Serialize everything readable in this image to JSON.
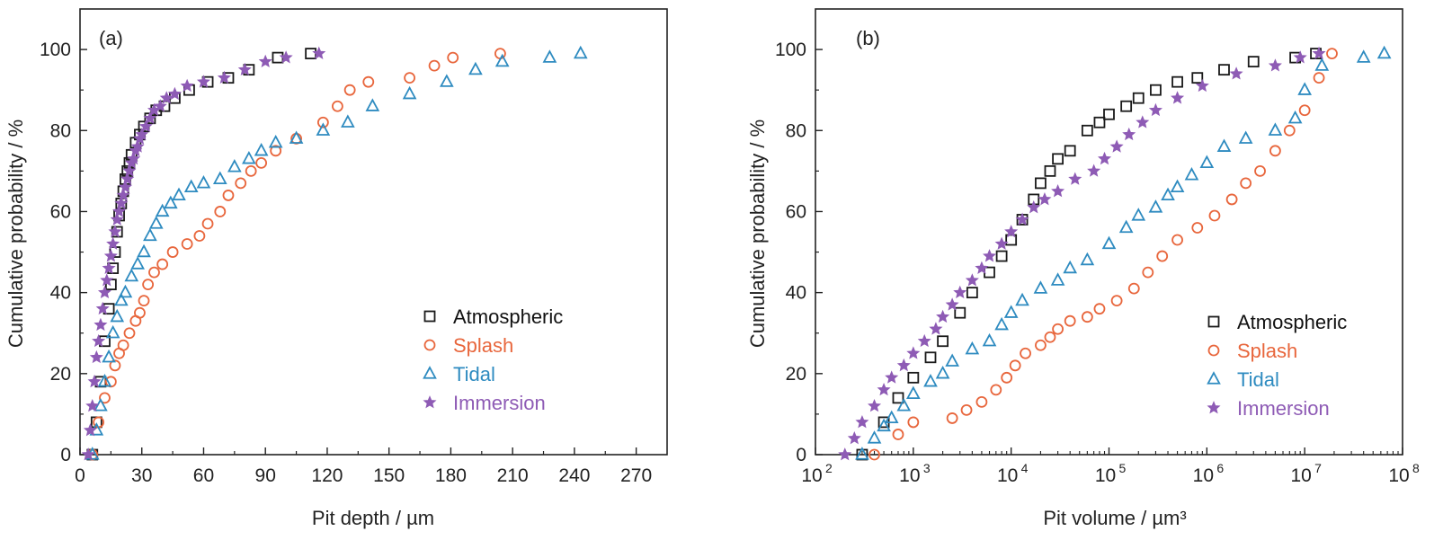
{
  "chart_data": [
    {
      "type": "scatter",
      "panel_label": "(a)",
      "xlabel": "Pit depth / µm",
      "ylabel": "Cumulative probability / %",
      "xscale": "linear",
      "xlim": [
        0,
        285
      ],
      "ylim": [
        0,
        110
      ],
      "xticks": [
        0,
        30,
        60,
        90,
        120,
        150,
        180,
        210,
        240,
        270
      ],
      "yticks": [
        0,
        20,
        40,
        60,
        80,
        100
      ],
      "legend_position": "lower-right",
      "series": [
        {
          "name": "Atmospheric",
          "marker": "square",
          "color": "#1a1a1a",
          "x": [
            6,
            8,
            10,
            12,
            14,
            15,
            16,
            17,
            18,
            19,
            20,
            21,
            22,
            23,
            24,
            25,
            27,
            29,
            31,
            34,
            37,
            41,
            46,
            53,
            62,
            72,
            82,
            96,
            112
          ],
          "y": [
            0,
            8,
            18,
            28,
            36,
            42,
            46,
            50,
            55,
            59,
            62,
            65,
            68,
            70,
            72,
            74,
            77,
            79,
            81,
            83,
            85,
            86,
            88,
            90,
            92,
            93,
            95,
            98,
            99
          ]
        },
        {
          "name": "Splash",
          "marker": "circle",
          "color": "#e8663c",
          "x": [
            6,
            9,
            12,
            15,
            17,
            19,
            21,
            24,
            27,
            29,
            31,
            33,
            36,
            40,
            45,
            52,
            58,
            62,
            68,
            72,
            78,
            83,
            88,
            95,
            105,
            118,
            125,
            131,
            140,
            160,
            172,
            181,
            204
          ],
          "y": [
            0,
            8,
            14,
            18,
            22,
            25,
            27,
            30,
            33,
            35,
            38,
            42,
            45,
            47,
            50,
            52,
            54,
            57,
            60,
            64,
            67,
            70,
            72,
            75,
            78,
            82,
            86,
            90,
            92,
            93,
            96,
            98,
            99
          ]
        },
        {
          "name": "Tidal",
          "marker": "triangle",
          "color": "#2e8bc0",
          "x": [
            6,
            8,
            10,
            12,
            14,
            16,
            18,
            20,
            22,
            25,
            28,
            31,
            34,
            37,
            40,
            44,
            48,
            54,
            60,
            68,
            75,
            82,
            88,
            95,
            105,
            118,
            130,
            142,
            160,
            178,
            192,
            205,
            228,
            243
          ],
          "y": [
            0,
            6,
            12,
            18,
            24,
            30,
            34,
            38,
            40,
            44,
            47,
            50,
            54,
            57,
            60,
            62,
            64,
            66,
            67,
            68,
            71,
            73,
            75,
            77,
            78,
            80,
            82,
            86,
            89,
            92,
            95,
            97,
            98,
            99
          ]
        },
        {
          "name": "Immersion",
          "marker": "star",
          "color": "#8e5bb5",
          "x": [
            4,
            5,
            6,
            7,
            8,
            9,
            10,
            11,
            12,
            13,
            14,
            15,
            16,
            17,
            18,
            19,
            20,
            21,
            22,
            23,
            24,
            25,
            26,
            27,
            28,
            29,
            30,
            32,
            34,
            36,
            39,
            42,
            46,
            52,
            60,
            70,
            80,
            90,
            100,
            116
          ],
          "y": [
            0,
            6,
            12,
            18,
            24,
            28,
            32,
            36,
            40,
            43,
            46,
            49,
            52,
            55,
            58,
            60,
            62,
            64,
            66,
            68,
            70,
            72,
            73,
            75,
            76,
            78,
            79,
            81,
            83,
            85,
            86,
            88,
            89,
            91,
            92,
            93,
            95,
            97,
            98,
            99
          ]
        }
      ]
    },
    {
      "type": "scatter",
      "panel_label": "(b)",
      "xlabel": "Pit volume / µm³",
      "ylabel": "Cumulative probability / %",
      "xscale": "log",
      "xlim": [
        100,
        100000000
      ],
      "ylim": [
        0,
        110
      ],
      "xticks": [
        100,
        1000,
        10000,
        100000,
        1000000,
        10000000,
        100000000
      ],
      "xtick_labels": [
        {
          "base": "10",
          "exp": "2"
        },
        {
          "base": "10",
          "exp": "3"
        },
        {
          "base": "10",
          "exp": "4"
        },
        {
          "base": "10",
          "exp": "5"
        },
        {
          "base": "10",
          "exp": "6"
        },
        {
          "base": "10",
          "exp": "7"
        },
        {
          "base": "10",
          "exp": "8"
        }
      ],
      "yticks": [
        0,
        20,
        40,
        60,
        80,
        100
      ],
      "legend_position": "lower-right",
      "series": [
        {
          "name": "Atmospheric",
          "marker": "square",
          "color": "#1a1a1a",
          "x": [
            300,
            500,
            700,
            1000,
            1500,
            2000,
            3000,
            4000,
            6000,
            8000,
            10000,
            13000,
            17000,
            20000,
            25000,
            30000,
            40000,
            60000,
            80000,
            100000,
            150000,
            200000,
            300000,
            500000,
            800000,
            1500000,
            3000000,
            8000000,
            13000000
          ],
          "y": [
            0,
            8,
            14,
            19,
            24,
            28,
            35,
            40,
            45,
            49,
            53,
            58,
            63,
            67,
            70,
            73,
            75,
            80,
            82,
            84,
            86,
            88,
            90,
            92,
            93,
            95,
            97,
            98,
            99
          ]
        },
        {
          "name": "Splash",
          "marker": "circle",
          "color": "#e8663c",
          "x": [
            400,
            700,
            1000,
            2500,
            3500,
            5000,
            7000,
            9000,
            11000,
            14000,
            20000,
            25000,
            30000,
            40000,
            60000,
            80000,
            120000,
            180000,
            250000,
            350000,
            500000,
            800000,
            1200000,
            1800000,
            2500000,
            3500000,
            5000000,
            7000000,
            10000000,
            14000000,
            19000000
          ],
          "y": [
            0,
            5,
            8,
            9,
            11,
            13,
            16,
            19,
            22,
            25,
            27,
            29,
            31,
            33,
            34,
            36,
            38,
            41,
            45,
            49,
            53,
            56,
            59,
            63,
            67,
            70,
            75,
            80,
            85,
            93,
            99
          ]
        },
        {
          "name": "Tidal",
          "marker": "triangle",
          "color": "#2e8bc0",
          "x": [
            300,
            400,
            500,
            600,
            800,
            1000,
            1500,
            2000,
            2500,
            4000,
            6000,
            8000,
            10000,
            13000,
            20000,
            30000,
            40000,
            60000,
            100000,
            150000,
            200000,
            300000,
            400000,
            500000,
            700000,
            1000000,
            1500000,
            2500000,
            5000000,
            8000000,
            10000000,
            15000000,
            40000000,
            65000000
          ],
          "y": [
            0,
            4,
            7,
            9,
            12,
            15,
            18,
            20,
            23,
            26,
            28,
            32,
            35,
            38,
            41,
            43,
            46,
            48,
            52,
            56,
            59,
            61,
            64,
            66,
            69,
            72,
            76,
            78,
            80,
            83,
            90,
            96,
            98,
            99
          ]
        },
        {
          "name": "Immersion",
          "marker": "star",
          "color": "#8e5bb5",
          "x": [
            200,
            250,
            300,
            400,
            500,
            600,
            800,
            1000,
            1300,
            1700,
            2000,
            2500,
            3000,
            4000,
            5000,
            6000,
            8000,
            10000,
            13000,
            17000,
            22000,
            30000,
            45000,
            70000,
            90000,
            120000,
            160000,
            220000,
            300000,
            500000,
            900000,
            2000000,
            5000000,
            9000000,
            14000000
          ],
          "y": [
            0,
            4,
            8,
            12,
            16,
            19,
            22,
            25,
            28,
            31,
            34,
            37,
            40,
            43,
            46,
            49,
            52,
            55,
            58,
            61,
            63,
            65,
            68,
            70,
            73,
            76,
            79,
            82,
            85,
            88,
            91,
            94,
            96,
            98,
            99
          ]
        }
      ]
    }
  ]
}
